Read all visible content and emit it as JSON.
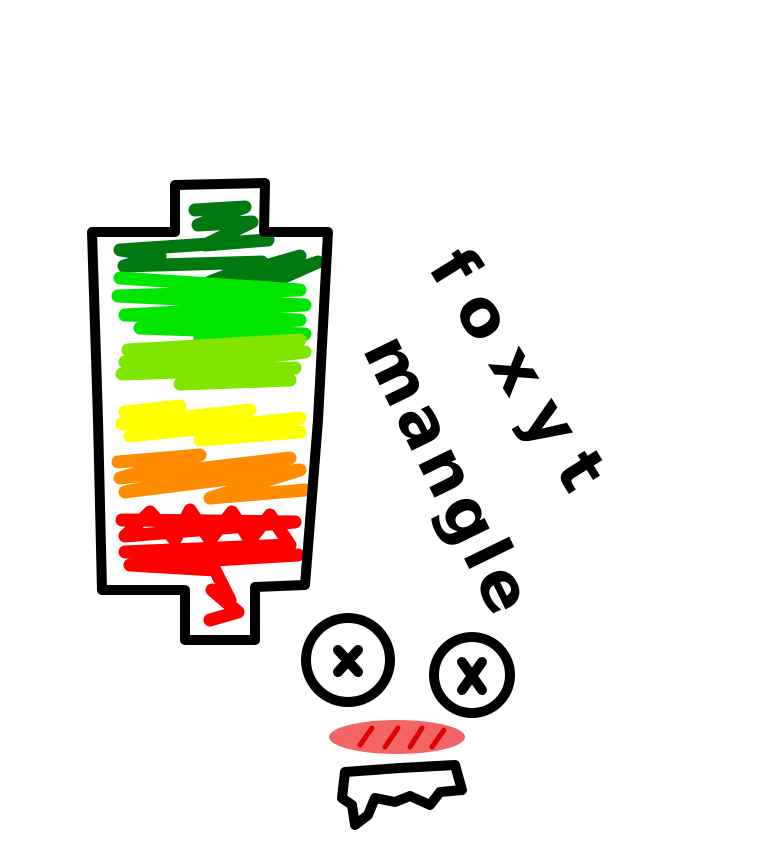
{
  "caption": {
    "line1": "foxyt",
    "line2": "mangle"
  }
}
